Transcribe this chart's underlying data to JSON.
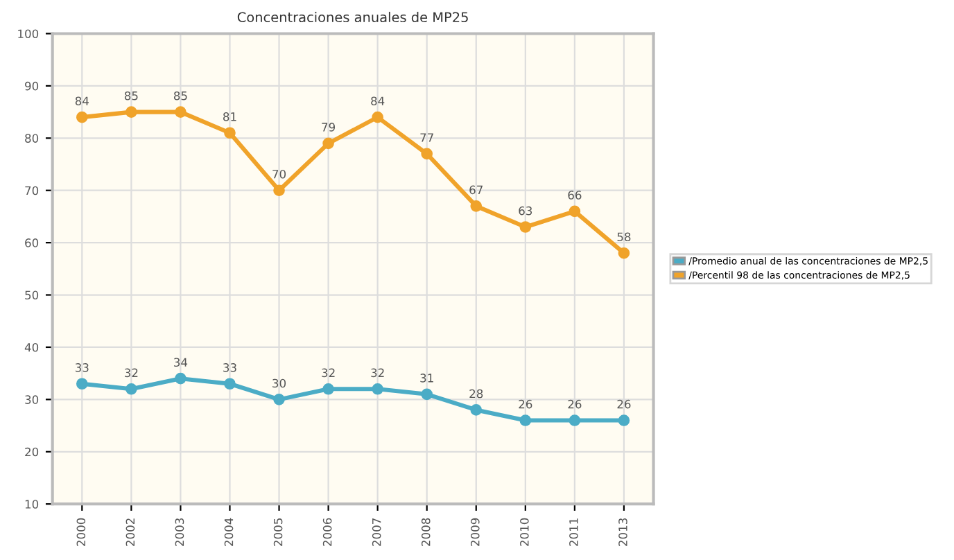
{
  "chart_data": {
    "type": "line",
    "title": "Concentraciones anuales de MP25",
    "categories": [
      "2000",
      "2002",
      "2003",
      "2004",
      "2005",
      "2006",
      "2007",
      "2008",
      "2009",
      "2010",
      "2011",
      "2013"
    ],
    "series": [
      {
        "name": "/Promedio anual de las concentraciones de MP2,5",
        "color": "#4bacc6",
        "values": [
          33,
          32,
          34,
          33,
          30,
          32,
          32,
          31,
          28,
          26,
          26,
          26
        ]
      },
      {
        "name": "/Percentil 98 de las concentraciones de MP2,5",
        "color": "#f0a32a",
        "values": [
          84,
          85,
          85,
          81,
          70,
          79,
          84,
          77,
          67,
          63,
          66,
          58
        ]
      }
    ],
    "ylim": [
      10,
      100
    ],
    "yticks": [
      10,
      20,
      30,
      40,
      50,
      60,
      70,
      80,
      90,
      100
    ],
    "grid": true,
    "legend": "right",
    "marker": "circle",
    "line_style": "solid",
    "data_labels": true
  }
}
